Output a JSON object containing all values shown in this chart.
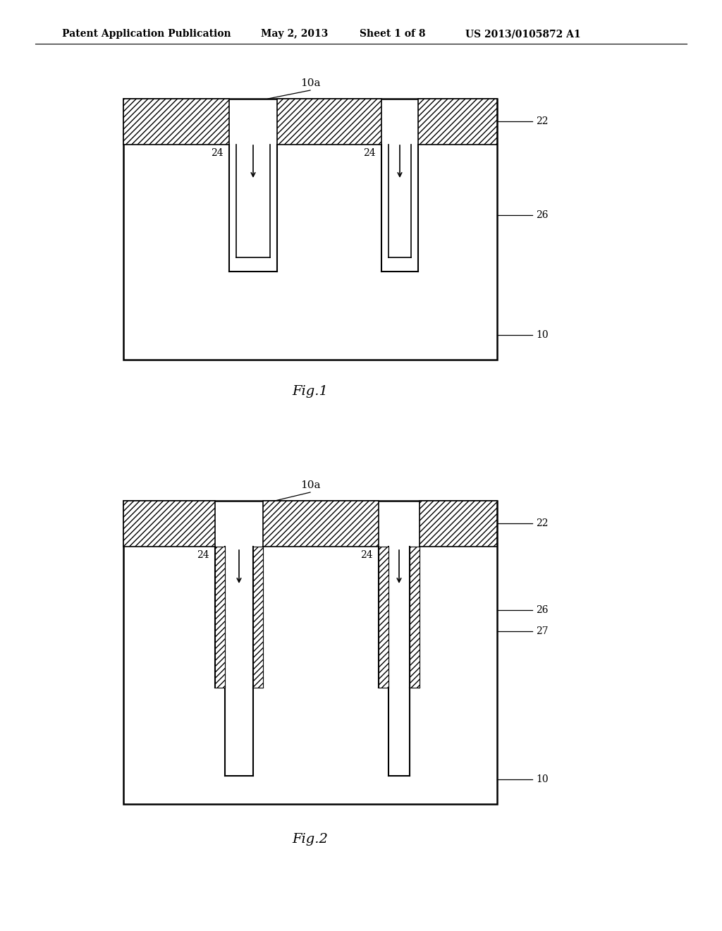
{
  "bg_color": "#ffffff",
  "line_color": "#000000",
  "header": "Patent Application Publication",
  "header_date": "May 2, 2013",
  "header_sheet": "Sheet 1 of 8",
  "header_pat": "US 2013/0105872 A1",
  "fig1_caption": "Fig.1",
  "fig2_caption": "Fig.2"
}
